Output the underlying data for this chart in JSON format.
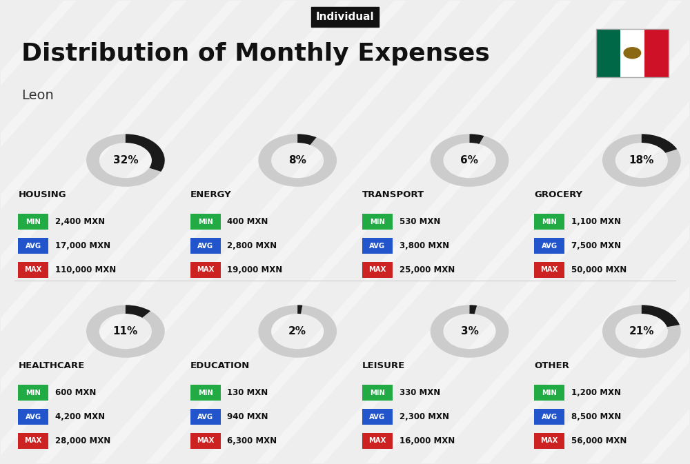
{
  "title": "Distribution of Monthly Expenses",
  "subtitle": "Individual",
  "city": "Leon",
  "background_color": "#eeeeee",
  "categories": [
    {
      "name": "HOUSING",
      "pct": 32,
      "min": "2,400 MXN",
      "avg": "17,000 MXN",
      "max": "110,000 MXN",
      "row": 0,
      "col": 0
    },
    {
      "name": "ENERGY",
      "pct": 8,
      "min": "400 MXN",
      "avg": "2,800 MXN",
      "max": "19,000 MXN",
      "row": 0,
      "col": 1
    },
    {
      "name": "TRANSPORT",
      "pct": 6,
      "min": "530 MXN",
      "avg": "3,800 MXN",
      "max": "25,000 MXN",
      "row": 0,
      "col": 2
    },
    {
      "name": "GROCERY",
      "pct": 18,
      "min": "1,100 MXN",
      "avg": "7,500 MXN",
      "max": "50,000 MXN",
      "row": 0,
      "col": 3
    },
    {
      "name": "HEALTHCARE",
      "pct": 11,
      "min": "600 MXN",
      "avg": "4,200 MXN",
      "max": "28,000 MXN",
      "row": 1,
      "col": 0
    },
    {
      "name": "EDUCATION",
      "pct": 2,
      "min": "130 MXN",
      "avg": "940 MXN",
      "max": "6,300 MXN",
      "row": 1,
      "col": 1
    },
    {
      "name": "LEISURE",
      "pct": 3,
      "min": "330 MXN",
      "avg": "2,300 MXN",
      "max": "16,000 MXN",
      "row": 1,
      "col": 2
    },
    {
      "name": "OTHER",
      "pct": 21,
      "min": "1,200 MXN",
      "avg": "8,500 MXN",
      "max": "56,000 MXN",
      "row": 1,
      "col": 3
    }
  ],
  "min_color": "#22aa44",
  "avg_color": "#2255cc",
  "max_color": "#cc2222",
  "ring_filled_color": "#1a1a1a",
  "ring_empty_color": "#cccccc",
  "flag_green": "#006847",
  "flag_white": "#FFFFFF",
  "flag_red": "#CE1126"
}
